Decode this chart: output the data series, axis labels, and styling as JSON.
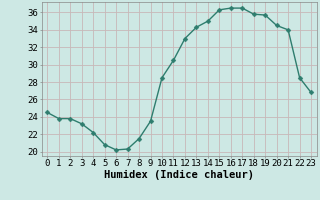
{
  "x": [
    0,
    1,
    2,
    3,
    4,
    5,
    6,
    7,
    8,
    9,
    10,
    11,
    12,
    13,
    14,
    15,
    16,
    17,
    18,
    19,
    20,
    21,
    22,
    23
  ],
  "y": [
    24.5,
    23.8,
    23.8,
    23.2,
    22.2,
    20.8,
    20.2,
    20.3,
    21.5,
    23.5,
    28.5,
    30.5,
    33.0,
    34.3,
    35.0,
    36.3,
    36.5,
    36.5,
    35.8,
    35.7,
    34.5,
    34.0,
    28.5,
    26.8
  ],
  "line_color": "#2e7d6e",
  "marker": "D",
  "marker_size": 2.5,
  "bg_color": "#cde8e4",
  "grid_color": "#c8b8b8",
  "xlabel": "Humidex (Indice chaleur)",
  "ylabel_ticks": [
    20,
    22,
    24,
    26,
    28,
    30,
    32,
    34,
    36
  ],
  "xlim": [
    -0.5,
    23.5
  ],
  "ylim": [
    19.5,
    37.2
  ],
  "tick_label_fontsize": 6.5,
  "xlabel_fontsize": 7.5
}
